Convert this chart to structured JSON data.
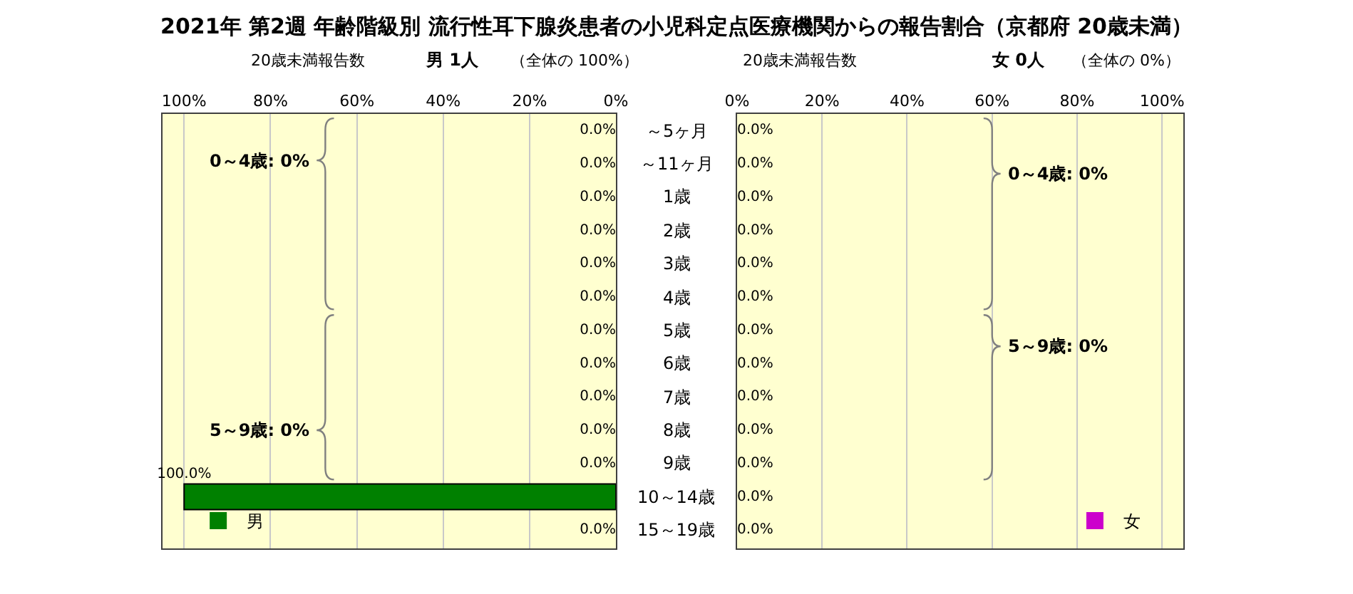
{
  "chart_data": [
    {
      "type": "bar",
      "orientation": "horizontal",
      "title": "2021年 第2週 年齢階級別 流行性耳下腺炎患者の小児科定点医療機関からの報告割合（京都府 20歳未満）",
      "subtitle": "男 1人",
      "xlabel": "20歳未満報告数",
      "annotations": [
        "（全体の 100%）",
        "0～4歳: 0%",
        "5～9歳: 0%"
      ],
      "categories": [
        "～5ヶ月",
        "～11ヶ月",
        "1歳",
        "2歳",
        "3歳",
        "4歳",
        "5歳",
        "6歳",
        "7歳",
        "8歳",
        "9歳",
        "10～14歳",
        "15～19歳"
      ],
      "series": [
        {
          "name": "男",
          "color": "#008000",
          "values": [
            0,
            0,
            0,
            0,
            0,
            0,
            0,
            0,
            0,
            0,
            0,
            100,
            0
          ],
          "value_labels": [
            "0.0%",
            "0.0%",
            "0.0%",
            "0.0%",
            "0.0%",
            "0.0%",
            "0.0%",
            "0.0%",
            "0.0%",
            "0.0%",
            "0.0%",
            "100.0%",
            "0.0%"
          ]
        }
      ],
      "xlim": [
        105,
        0
      ],
      "xticks": [
        {
          "value": 100,
          "label": "100%"
        },
        {
          "value": 80,
          "label": "80%"
        },
        {
          "value": 60,
          "label": "60%"
        },
        {
          "value": 40,
          "label": "40%"
        },
        {
          "value": 20,
          "label": "20%"
        },
        {
          "value": 0,
          "label": "0%"
        }
      ],
      "grid": "x",
      "legend": "bottom left"
    },
    {
      "type": "bar",
      "orientation": "horizontal",
      "subtitle": "女 0人",
      "xlabel": "20歳未満報告数",
      "annotations": [
        "（全体の 0%）",
        "0～4歳: 0%",
        "5～9歳: 0%"
      ],
      "categories": [
        "～5ヶ月",
        "～11ヶ月",
        "1歳",
        "2歳",
        "3歳",
        "4歳",
        "5歳",
        "6歳",
        "7歳",
        "8歳",
        "9歳",
        "10～14歳",
        "15～19歳"
      ],
      "series": [
        {
          "name": "女",
          "color": "#cc00cc",
          "values": [
            0,
            0,
            0,
            0,
            0,
            0,
            0,
            0,
            0,
            0,
            0,
            0,
            0
          ],
          "value_labels": [
            "0.0%",
            "0.0%",
            "0.0%",
            "0.0%",
            "0.0%",
            "0.0%",
            "0.0%",
            "0.0%",
            "0.0%",
            "0.0%",
            "0.0%",
            "0.0%",
            "0.0%"
          ]
        }
      ],
      "xlim": [
        0,
        105
      ],
      "xticks": [
        {
          "value": 0,
          "label": "0%"
        },
        {
          "value": 20,
          "label": "20%"
        },
        {
          "value": 40,
          "label": "40%"
        },
        {
          "value": 60,
          "label": "60%"
        },
        {
          "value": 80,
          "label": "80%"
        },
        {
          "value": 100,
          "label": "100%"
        }
      ],
      "grid": "x",
      "legend": "bottom right",
      "tick_labels": "x"
    }
  ]
}
